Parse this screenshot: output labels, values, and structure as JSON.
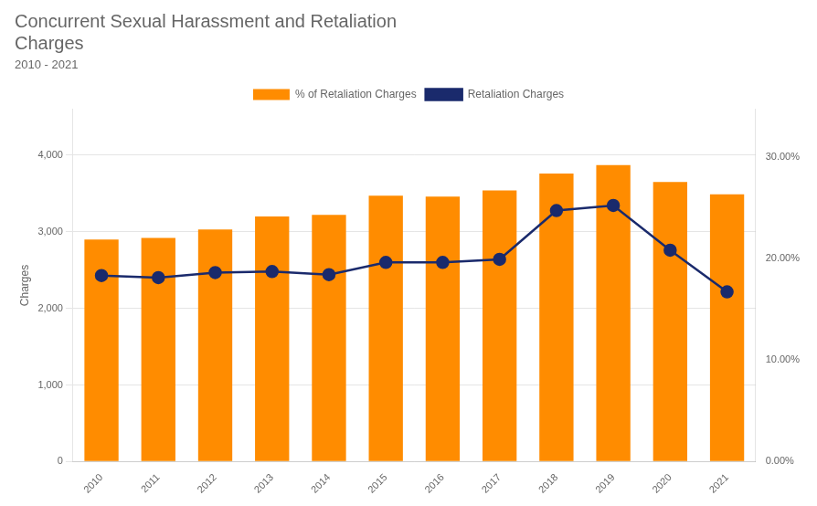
{
  "chart_data": {
    "type": "bar",
    "title": [
      "Concurrent Sexual Harassment and Retaliation",
      "Charges"
    ],
    "subtitle": "2010 - 2021",
    "ylabel": "Charges",
    "categories": [
      "2010",
      "2011",
      "2012",
      "2013",
      "2014",
      "2015",
      "2016",
      "2017",
      "2018",
      "2019",
      "2020",
      "2021"
    ],
    "series": [
      {
        "name": "% of Retaliation Charges",
        "type": "bar",
        "color": "#FF8C00",
        "values": [
          2900,
          2920,
          3030,
          3200,
          3220,
          3470,
          3460,
          3540,
          3760,
          3870,
          3650,
          3490
        ]
      },
      {
        "name": "Retaliation Charges",
        "type": "line",
        "color": "#1a2a6c",
        "marker": "circle",
        "axis": "y2",
        "values": [
          0.183,
          0.181,
          0.186,
          0.187,
          0.184,
          0.196,
          0.196,
          0.199,
          0.247,
          0.252,
          0.208,
          0.167
        ]
      }
    ],
    "ylim": [
      0,
      4600
    ],
    "yticks": [
      0,
      {
        "value": 1000,
        "label": "1,000"
      },
      {
        "value": 2000,
        "label": "2,000"
      },
      {
        "value": 3000,
        "label": "3,000"
      },
      {
        "value": 4000,
        "label": "4,000"
      }
    ],
    "y2lim": [
      0,
      0.3467
    ],
    "y2ticks": [
      {
        "value": 0.0,
        "label": "0.00%"
      },
      {
        "value": 0.1,
        "label": "10.00%"
      },
      {
        "value": 0.2,
        "label": "20.00%"
      },
      {
        "value": 0.3,
        "label": "30.00%"
      }
    ],
    "grid": true,
    "legend": "top"
  }
}
